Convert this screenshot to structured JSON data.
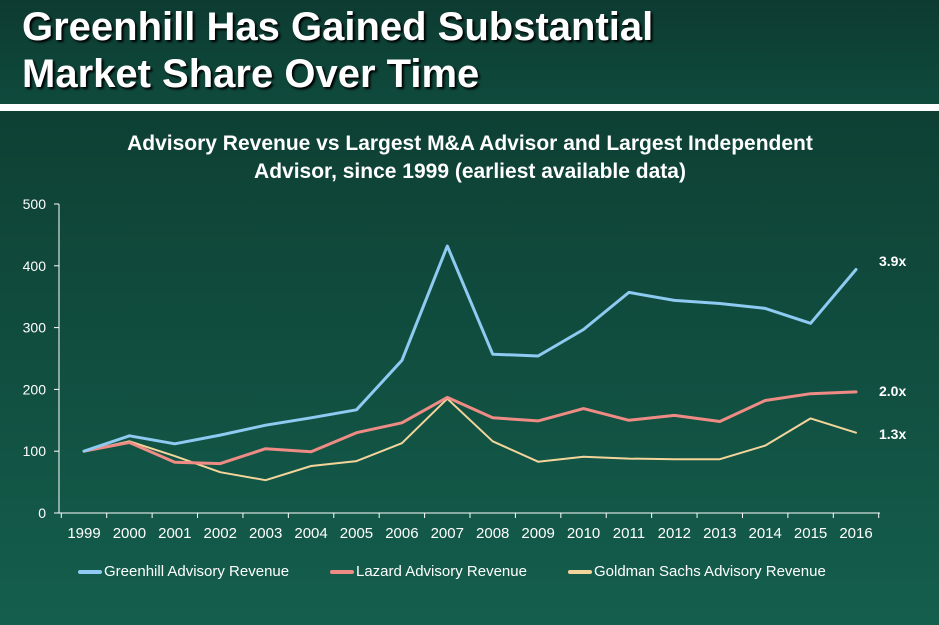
{
  "title_lines": [
    "Greenhill Has Gained Substantial",
    "Market Share Over Time"
  ],
  "colors": {
    "greenhill": "#8ecaf1",
    "lazard": "#ef8b85",
    "goldman": "#f3d59b",
    "text": "#ffffff",
    "axis": "#ffffff"
  },
  "chart_data": {
    "type": "line",
    "title_lines": [
      "Advisory Revenue vs Largest M&A Advisor and Largest Independent",
      "Advisor, since 1999 (earliest available data)"
    ],
    "xlabel": "",
    "ylabel": "",
    "categories": [
      "1999",
      "2000",
      "2001",
      "2002",
      "2003",
      "2004",
      "2005",
      "2006",
      "2007",
      "2008",
      "2009",
      "2010",
      "2011",
      "2012",
      "2013",
      "2014",
      "2015",
      "2016"
    ],
    "ylim": [
      0,
      500
    ],
    "yticks": [
      0,
      100,
      200,
      300,
      400,
      500
    ],
    "grid": false,
    "legend_position": "bottom",
    "series": [
      {
        "name": "Greenhill Advisory Revenue",
        "color": "#8ecaf1",
        "values": [
          100,
          125,
          112,
          126,
          142,
          154,
          167,
          247,
          432,
          257,
          254,
          297,
          357,
          344,
          339,
          331,
          307,
          394
        ],
        "end_label": "3.9x"
      },
      {
        "name": "Lazard Advisory Revenue",
        "color": "#ef8b85",
        "values": [
          100,
          114,
          82,
          80,
          104,
          99,
          130,
          146,
          187,
          154,
          149,
          169,
          150,
          158,
          148,
          182,
          193,
          196
        ],
        "end_label": "2.0x"
      },
      {
        "name": "Goldman Sachs Advisory Revenue",
        "color": "#f3d59b",
        "values": [
          100,
          116,
          92,
          66,
          53,
          76,
          84,
          113,
          185,
          116,
          83,
          91,
          88,
          87,
          87,
          109,
          153,
          130
        ],
        "end_label": "1.3x"
      }
    ]
  }
}
